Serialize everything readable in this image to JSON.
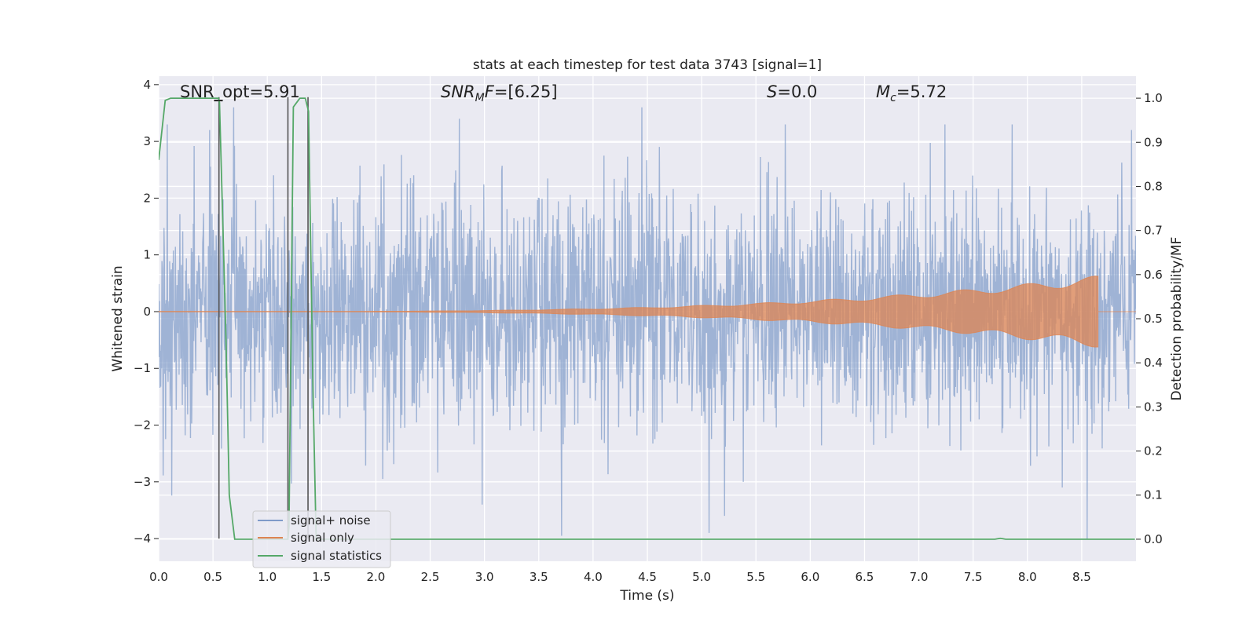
{
  "chart_data": {
    "type": "line",
    "title": "stats at each timestep for test data 3743 [signal=1]",
    "xlabel": "Time (s)",
    "ylabel": "Whitened strain",
    "y2label": "Detection probability/MF",
    "xlim": [
      0.0,
      9.0
    ],
    "ylim": [
      -4.4,
      4.15
    ],
    "y2lim": [
      -0.05,
      1.05
    ],
    "x_ticks": [
      0.0,
      0.5,
      1.0,
      1.5,
      2.0,
      2.5,
      3.0,
      3.5,
      4.0,
      4.5,
      5.0,
      5.5,
      6.0,
      6.5,
      7.0,
      7.5,
      8.0,
      8.5
    ],
    "x_tick_labels": [
      "0.0",
      "0.5",
      "1.0",
      "1.5",
      "2.0",
      "2.5",
      "3.0",
      "3.5",
      "4.0",
      "4.5",
      "5.0",
      "5.5",
      "6.0",
      "6.5",
      "7.0",
      "7.5",
      "8.0",
      "8.5"
    ],
    "y_ticks": [
      4,
      3,
      2,
      1,
      0,
      -1,
      -2,
      -3,
      -4
    ],
    "y_tick_labels": [
      "4",
      "3",
      "2",
      "1",
      "0",
      "−1",
      "−2",
      "−3",
      "−4"
    ],
    "y2_ticks": [
      1.0,
      0.9,
      0.8,
      0.7,
      0.6,
      0.5,
      0.4,
      0.3,
      0.2,
      0.1,
      0.0
    ],
    "y2_tick_labels": [
      "1.0",
      "0.9",
      "0.8",
      "0.7",
      "0.6",
      "0.5",
      "0.4",
      "0.3",
      "0.2",
      "0.1",
      "0.0"
    ],
    "grid": true,
    "legend_position": "bottom-left",
    "annotations": [
      {
        "id": "snr_opt",
        "text": "SNR_opt=5.91",
        "x": 0.2
      },
      {
        "id": "snr_mf",
        "text": "=[6.25]",
        "x": 2.6
      },
      {
        "id": "s",
        "text": "=0.0",
        "x": 5.6
      },
      {
        "id": "mc",
        "text": "=5.72",
        "x": 6.6
      }
    ],
    "series": [
      {
        "name": "signal+ noise",
        "color": "#7f9bc9",
        "style": "noise",
        "seed": 3743,
        "samples": 2400,
        "sigma": 1.0,
        "spikes": [
          [
            0.08,
            3.3
          ],
          [
            0.47,
            3.2
          ],
          [
            0.69,
            3.6
          ],
          [
            2.77,
            3.4
          ],
          [
            4.45,
            3.6
          ],
          [
            5.21,
            -3.6
          ],
          [
            5.77,
            3.3
          ],
          [
            7.24,
            3.3
          ],
          [
            7.86,
            3.3
          ],
          [
            8.32,
            -3.1
          ],
          [
            8.96,
            3.2
          ],
          [
            3.71,
            -3.95
          ],
          [
            2.98,
            -3.4
          ],
          [
            8.55,
            -4.0
          ]
        ]
      },
      {
        "name": "signal only",
        "color": "#dd8452",
        "style": "chirp",
        "start": 0.0,
        "end": 8.65,
        "max_amplitude": 0.55
      },
      {
        "name": "signal statistics",
        "color": "#55a868",
        "axis": "right",
        "x": [
          0.0,
          0.06,
          0.11,
          0.55,
          0.56,
          0.62,
          0.65,
          0.7,
          1.19,
          1.2,
          1.24,
          1.3,
          1.35,
          1.38,
          1.42,
          1.45,
          7.7,
          7.75,
          7.8,
          8.99
        ],
        "y": [
          0.86,
          0.995,
          1.0,
          1.0,
          0.99,
          0.45,
          0.1,
          0.0,
          0.0,
          0.03,
          0.98,
          1.0,
          1.0,
          0.97,
          0.35,
          0.0,
          0.0,
          0.002,
          0.0,
          0.0
        ]
      }
    ],
    "vlines": [
      {
        "x": 0.555,
        "ymin": -4.0,
        "ymax": 3.78
      },
      {
        "x": 1.19,
        "ymin": -4.0,
        "ymax": 3.78
      },
      {
        "x": 1.375,
        "ymin": -4.0,
        "ymax": 3.78
      }
    ],
    "marker_segments": [
      {
        "x1": 0.51,
        "x2": 0.59,
        "y": 3.72
      }
    ]
  }
}
